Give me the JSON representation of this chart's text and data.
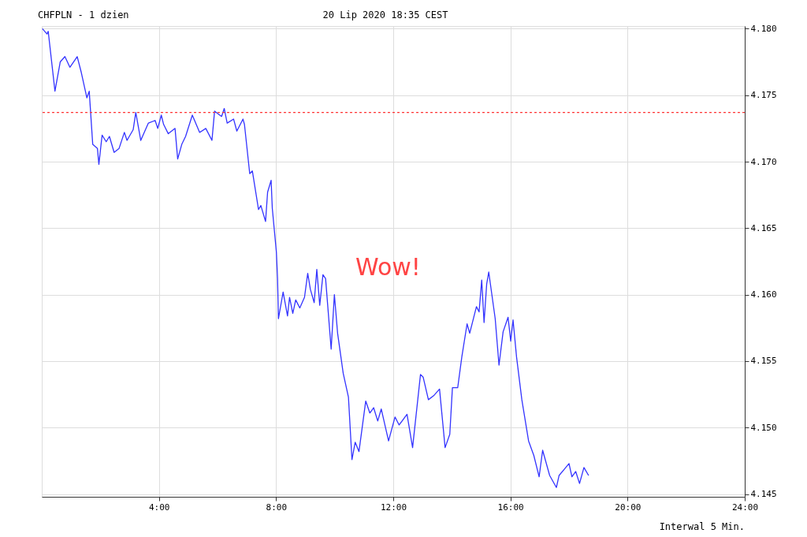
{
  "chart_data": {
    "type": "line",
    "title": "CHFPLN - 1 dzien",
    "subtitle": "20 Lip 2020 18:35 CEST",
    "annotations": [
      "Wow!",
      "Interwal 5 Min."
    ],
    "xlim": [
      0,
      24
    ],
    "xticks": [
      {
        "value": 4,
        "label": "4:00"
      },
      {
        "value": 8,
        "label": "8:00"
      },
      {
        "value": 12,
        "label": "12:00"
      },
      {
        "value": 16,
        "label": "16:00"
      },
      {
        "value": 20,
        "label": "20:00"
      },
      {
        "value": 24,
        "label": "24:00"
      }
    ],
    "ylim": [
      4.1448,
      4.1802
    ],
    "yticks": [
      4.145,
      {
        "value": 4.15,
        "label": "4.150"
      },
      4.155,
      {
        "value": 4.16,
        "label": "4.160"
      },
      4.165,
      {
        "value": 4.17,
        "label": "4.170"
      },
      4.175,
      {
        "value": 4.18,
        "label": "4.180"
      }
    ],
    "grid": true,
    "line_style": "solid",
    "marker": "none",
    "ref_lines": [
      {
        "axis": "y",
        "value": 4.1737,
        "color": "#ff3333",
        "line_style": "dotted"
      }
    ],
    "series": [
      {
        "color": "#3333ff",
        "x": [
          0.02,
          0.18,
          0.22,
          0.45,
          0.63,
          0.79,
          0.96,
          1.21,
          1.35,
          1.54,
          1.62,
          1.74,
          1.9,
          1.95,
          2.06,
          2.2,
          2.31,
          2.47,
          2.64,
          2.82,
          2.91,
          3.12,
          3.21,
          3.38,
          3.64,
          3.87,
          3.96,
          4.08,
          4.16,
          4.32,
          4.55,
          4.64,
          4.78,
          4.91,
          5.14,
          5.39,
          5.6,
          5.81,
          5.9,
          6.14,
          6.23,
          6.33,
          6.55,
          6.66,
          6.87,
          6.92,
          7.1,
          7.19,
          7.4,
          7.48,
          7.64,
          7.71,
          7.83,
          7.87,
          8.01,
          8.05,
          8.08,
          8.24,
          8.39,
          8.46,
          8.57,
          8.67,
          8.81,
          8.97,
          9.08,
          9.17,
          9.3,
          9.39,
          9.49,
          9.6,
          9.69,
          9.88,
          9.99,
          10.1,
          10.29,
          10.47,
          10.59,
          10.7,
          10.83,
          11.06,
          11.2,
          11.33,
          11.47,
          11.59,
          11.84,
          12.06,
          12.2,
          12.47,
          12.66,
          12.93,
          13.02,
          13.2,
          13.38,
          13.58,
          13.77,
          13.93,
          14.02,
          14.2,
          14.34,
          14.52,
          14.61,
          14.84,
          14.93,
          15.02,
          15.1,
          15.19,
          15.26,
          15.48,
          15.61,
          15.75,
          15.92,
          16.01,
          16.09,
          16.21,
          16.39,
          16.62,
          16.8,
          16.98,
          17.1,
          17.34,
          17.57,
          17.66,
          17.85,
          18.0,
          18.1,
          18.23,
          18.36,
          18.51,
          18.67
        ],
        "values": [
          4.18,
          4.1796,
          4.1798,
          4.1753,
          4.1775,
          4.1779,
          4.1771,
          4.1779,
          4.1767,
          4.1748,
          4.1753,
          4.1713,
          4.171,
          4.1698,
          4.172,
          4.1715,
          4.1719,
          4.1707,
          4.171,
          4.1722,
          4.1716,
          4.1724,
          4.1737,
          4.1716,
          4.1729,
          4.1731,
          4.1725,
          4.1735,
          4.1728,
          4.1721,
          4.1725,
          4.1702,
          4.1713,
          4.1719,
          4.1735,
          4.1722,
          4.1725,
          4.1716,
          4.1738,
          4.1734,
          4.174,
          4.1729,
          4.1732,
          4.1723,
          4.1732,
          4.1728,
          4.1691,
          4.1693,
          4.1664,
          4.1667,
          4.1655,
          4.1677,
          4.1686,
          4.1665,
          4.1632,
          4.1612,
          4.1582,
          4.1602,
          4.1584,
          4.1598,
          4.1586,
          4.1596,
          4.159,
          4.1598,
          4.1616,
          4.1604,
          4.1594,
          4.1619,
          4.1592,
          4.1615,
          4.1612,
          4.1559,
          4.16,
          4.1571,
          4.1541,
          4.1523,
          4.1476,
          4.1489,
          4.1482,
          4.152,
          4.1511,
          4.1515,
          4.1505,
          4.1514,
          4.149,
          4.1508,
          4.1502,
          4.151,
          4.1485,
          4.154,
          4.1538,
          4.1521,
          4.1524,
          4.1529,
          4.1485,
          4.1495,
          4.153,
          4.153,
          4.1553,
          4.1578,
          4.1571,
          4.1591,
          4.1587,
          4.1611,
          4.1579,
          4.1608,
          4.1617,
          4.1582,
          4.1547,
          4.1572,
          4.1583,
          4.1565,
          4.1581,
          4.1553,
          4.1521,
          4.149,
          4.1479,
          4.1463,
          4.1483,
          4.1464,
          4.1455,
          4.1464,
          4.1469,
          4.1473,
          4.1463,
          4.1467,
          4.1458,
          4.147,
          4.1464
        ]
      }
    ]
  }
}
